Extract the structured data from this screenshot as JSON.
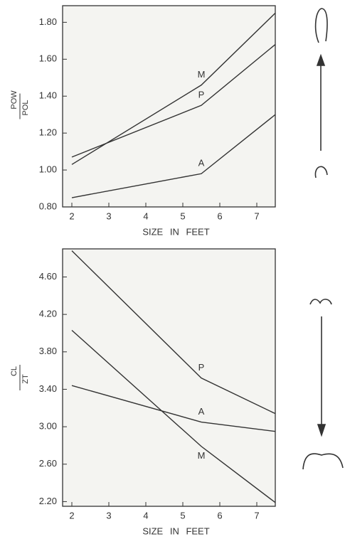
{
  "chart_data": [
    {
      "type": "line",
      "ylabel": [
        "POW",
        "POL"
      ],
      "xlabel": "SIZE IN FEET",
      "xlim": [
        1.75,
        7.5
      ],
      "xticks": [
        2,
        3,
        4,
        5,
        6,
        7
      ],
      "ylim": [
        0.8,
        1.89
      ],
      "yticks": [
        {
          "value": 0.8,
          "label": "0.80"
        },
        {
          "value": 1,
          "label": "1.00"
        },
        {
          "value": 1.2,
          "label": "1.20"
        },
        {
          "value": 1.4,
          "label": "1.40"
        },
        {
          "value": 1.6,
          "label": "1.60"
        },
        {
          "value": 1.8,
          "label": "1.80"
        }
      ],
      "x": [
        2,
        5.5,
        7.5
      ],
      "series": [
        {
          "name": "M",
          "color": "#333333",
          "values": [
            1.03,
            1.46,
            1.85
          ]
        },
        {
          "name": "P",
          "color": "#333333",
          "values": [
            1.07,
            1.35,
            1.68
          ]
        },
        {
          "name": "A",
          "color": "#333333",
          "values": [
            0.85,
            0.98,
            1.3
          ]
        }
      ]
    },
    {
      "type": "line",
      "ylabel": [
        "CL",
        "ZT"
      ],
      "xlabel": "SIZE IN FEET",
      "xlim": [
        1.75,
        7.5
      ],
      "xticks": [
        2,
        3,
        4,
        5,
        6,
        7
      ],
      "ylim": [
        2.15,
        4.9
      ],
      "yticks": [
        {
          "value": 2.2,
          "label": "2.20"
        },
        {
          "value": 2.6,
          "label": "2.60"
        },
        {
          "value": 3,
          "label": "3.00"
        },
        {
          "value": 3.4,
          "label": "3.40"
        },
        {
          "value": 3.8,
          "label": "3.80"
        },
        {
          "value": 4.2,
          "label": "4.20"
        },
        {
          "value": 4.6,
          "label": "4.60"
        }
      ],
      "x": [
        2,
        5.5,
        7.5
      ],
      "series": [
        {
          "name": "P",
          "color": "#333333",
          "values": [
            4.88,
            3.52,
            3.14
          ]
        },
        {
          "name": "A",
          "color": "#333333",
          "values": [
            3.44,
            3.05,
            2.95
          ]
        },
        {
          "name": "M",
          "color": "#333333",
          "values": [
            4.03,
            2.79,
            2.19
          ]
        }
      ]
    }
  ]
}
